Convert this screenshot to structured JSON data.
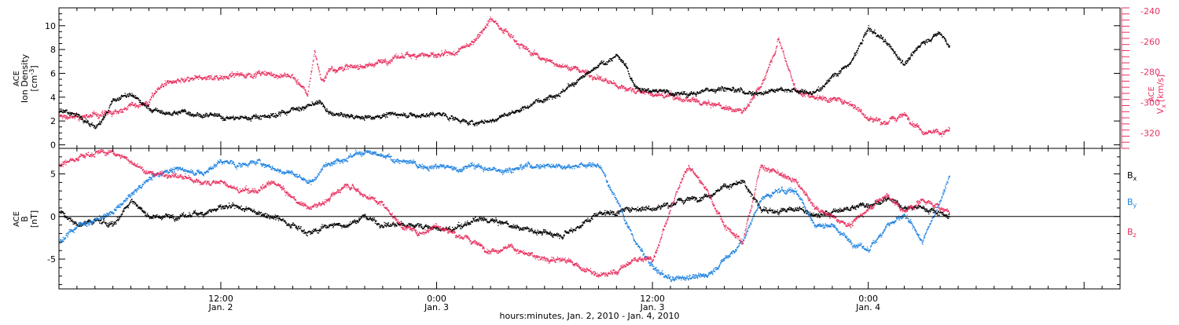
{
  "colors": {
    "density": "#000000",
    "vx": "#e8305f",
    "bx": "#000000",
    "by": "#1e82e0",
    "bz": "#e8305f",
    "axis": "#000000",
    "zero_line": "#000000"
  },
  "x_axis": {
    "title": "hours:minutes, Jan. 2, 2010 - Jan. 4, 2010",
    "major_ticks": [
      {
        "time": "12:00",
        "date": "Jan. 2",
        "hours": 12
      },
      {
        "time": "0:00",
        "date": "Jan. 3",
        "hours": 24
      },
      {
        "time": "12:00",
        "date": "Jan. 3",
        "hours": 36
      },
      {
        "time": "0:00",
        "date": "Jan. 4",
        "hours": 48
      }
    ],
    "range_hours": [
      3,
      62
    ],
    "data_end_hours": 52.5,
    "minor_tick_step_hours": 1,
    "major_tick_step_hours": 12
  },
  "chart_data": [
    {
      "type": "scatter",
      "panel": "plasma",
      "ylabel_left": [
        "ACE",
        "Ion Density",
        "[cm",
        "-3",
        "]"
      ],
      "ylabel_right": [
        "ACE",
        "V",
        "x",
        "[km/s]"
      ],
      "ylim_left": [
        -0.3,
        11.5
      ],
      "ylim_right": [
        -330,
        -238
      ],
      "yticks_left": [
        "0",
        "2",
        "4",
        "6",
        "8",
        "10"
      ],
      "yticks_right": [
        "-320",
        "-300",
        "-280",
        "-260",
        "-240"
      ],
      "series": [
        {
          "axis": "left",
          "color": "#000000",
          "points": [
            [
              3,
              2.8
            ],
            [
              4,
              2.5
            ],
            [
              5,
              1.5
            ],
            [
              5.5,
              2.2
            ],
            [
              6,
              3.8
            ],
            [
              7,
              4.2
            ],
            [
              8,
              3.0
            ],
            [
              9,
              2.6
            ],
            [
              10,
              2.8
            ],
            [
              11,
              2.5
            ],
            [
              12,
              2.3
            ],
            [
              13,
              2.2
            ],
            [
              14,
              2.4
            ],
            [
              15,
              2.5
            ],
            [
              16,
              3.0
            ],
            [
              16.8,
              3.2
            ],
            [
              17.5,
              3.6
            ],
            [
              18,
              2.6
            ],
            [
              19,
              2.4
            ],
            [
              20,
              2.3
            ],
            [
              21,
              2.5
            ],
            [
              22,
              2.6
            ],
            [
              23,
              2.4
            ],
            [
              24,
              2.6
            ],
            [
              25,
              2.2
            ],
            [
              26,
              1.8
            ],
            [
              27,
              2.0
            ],
            [
              28,
              2.6
            ],
            [
              29,
              3.2
            ],
            [
              30,
              4.0
            ],
            [
              31,
              4.5
            ],
            [
              32,
              5.5
            ],
            [
              33,
              6.6
            ],
            [
              34,
              7.5
            ],
            [
              34.5,
              6.5
            ],
            [
              35,
              5.0
            ],
            [
              36,
              4.5
            ],
            [
              37,
              4.4
            ],
            [
              38,
              4.2
            ],
            [
              39,
              4.6
            ],
            [
              40,
              4.8
            ],
            [
              41,
              4.5
            ],
            [
              42,
              4.3
            ],
            [
              43,
              4.8
            ],
            [
              44,
              4.5
            ],
            [
              45,
              4.3
            ],
            [
              46,
              5.8
            ],
            [
              47,
              6.8
            ],
            [
              48,
              9.8
            ],
            [
              49,
              8.5
            ],
            [
              50,
              6.8
            ],
            [
              51,
              8.6
            ],
            [
              52,
              9.4
            ],
            [
              52.5,
              8.3
            ]
          ]
        },
        {
          "axis": "right",
          "color": "#e8305f",
          "points": [
            [
              3,
              -309
            ],
            [
              4,
              -310
            ],
            [
              5,
              -308
            ],
            [
              6,
              -307
            ],
            [
              7,
              -302
            ],
            [
              8,
              -300
            ],
            [
              8.5,
              -290
            ],
            [
              9,
              -287
            ],
            [
              10,
              -286
            ],
            [
              11,
              -284
            ],
            [
              12,
              -283
            ],
            [
              13,
              -282
            ],
            [
              14,
              -281
            ],
            [
              15,
              -282
            ],
            [
              16,
              -283
            ],
            [
              16.8,
              -295
            ],
            [
              17.2,
              -266
            ],
            [
              17.6,
              -287
            ],
            [
              18,
              -278
            ],
            [
              19,
              -277
            ],
            [
              20,
              -276
            ],
            [
              21,
              -273
            ],
            [
              22,
              -270
            ],
            [
              23,
              -268
            ],
            [
              24,
              -270
            ],
            [
              25,
              -268
            ],
            [
              26,
              -260
            ],
            [
              27,
              -245
            ],
            [
              28,
              -255
            ],
            [
              29,
              -266
            ],
            [
              30,
              -272
            ],
            [
              31,
              -276
            ],
            [
              32,
              -279
            ],
            [
              33,
              -284
            ],
            [
              34,
              -289
            ],
            [
              35,
              -292
            ],
            [
              36,
              -295
            ],
            [
              37,
              -296
            ],
            [
              38,
              -299
            ],
            [
              39,
              -301
            ],
            [
              40,
              -303
            ],
            [
              41,
              -306
            ],
            [
              42,
              -290
            ],
            [
              43,
              -258
            ],
            [
              44,
              -293
            ],
            [
              45,
              -296
            ],
            [
              46,
              -298
            ],
            [
              47,
              -300
            ],
            [
              48,
              -310
            ],
            [
              49,
              -313
            ],
            [
              50,
              -308
            ],
            [
              51,
              -318
            ],
            [
              52,
              -320
            ],
            [
              52.5,
              -318
            ]
          ]
        }
      ]
    },
    {
      "type": "scatter",
      "panel": "magnetic field",
      "ylabel_left": [
        "ACE",
        "B",
        "[nT]"
      ],
      "ylim": [
        -8.5,
        8
      ],
      "yticks": [
        "-5",
        "0",
        "5"
      ],
      "legend": [
        {
          "label": "B",
          "sub": "x",
          "color": "#000000"
        },
        {
          "label": "B",
          "sub": "y",
          "color": "#1e82e0"
        },
        {
          "label": "B",
          "sub": "z",
          "color": "#e8305f"
        }
      ],
      "legend_placement": "right",
      "series": [
        {
          "name": "Bx",
          "color": "#000000",
          "points": [
            [
              3,
              0.5
            ],
            [
              4,
              -1
            ],
            [
              5,
              -0.5
            ],
            [
              6,
              -1
            ],
            [
              7,
              2
            ],
            [
              8,
              0
            ],
            [
              9,
              0
            ],
            [
              10,
              0
            ],
            [
              11,
              0.5
            ],
            [
              12,
              1
            ],
            [
              13,
              1
            ],
            [
              14,
              0.5
            ],
            [
              15,
              0
            ],
            [
              16,
              -1
            ],
            [
              17,
              -2
            ],
            [
              18,
              -1
            ],
            [
              19,
              -1
            ],
            [
              20,
              0
            ],
            [
              21,
              -1
            ],
            [
              22,
              -1
            ],
            [
              23,
              -1
            ],
            [
              24,
              -1.5
            ],
            [
              25,
              -1.5
            ],
            [
              26,
              -0.5
            ],
            [
              27,
              -0.5
            ],
            [
              28,
              -1
            ],
            [
              29,
              -1.5
            ],
            [
              30,
              -2
            ],
            [
              31,
              -2
            ],
            [
              32,
              -1
            ],
            [
              33,
              0.5
            ],
            [
              34,
              0.5
            ],
            [
              35,
              1
            ],
            [
              36,
              1
            ],
            [
              37,
              1.5
            ],
            [
              38,
              2
            ],
            [
              39,
              2.5
            ],
            [
              40,
              3.5
            ],
            [
              41,
              4
            ],
            [
              42,
              1
            ],
            [
              43,
              0.5
            ],
            [
              44,
              1
            ],
            [
              45,
              0
            ],
            [
              46,
              0.5
            ],
            [
              47,
              1
            ],
            [
              48,
              1.5
            ],
            [
              49,
              2
            ],
            [
              50,
              1
            ],
            [
              51,
              1
            ],
            [
              52,
              0.5
            ],
            [
              52.5,
              0
            ]
          ]
        },
        {
          "name": "By",
          "color": "#1e82e0",
          "points": [
            [
              3,
              -3
            ],
            [
              4,
              -1
            ],
            [
              5,
              -0.5
            ],
            [
              6,
              0.5
            ],
            [
              7,
              2.5
            ],
            [
              8,
              4.5
            ],
            [
              9,
              5.5
            ],
            [
              10,
              5.5
            ],
            [
              11,
              5
            ],
            [
              12,
              6.5
            ],
            [
              13,
              6
            ],
            [
              14,
              6.5
            ],
            [
              15,
              5.5
            ],
            [
              16,
              5
            ],
            [
              17,
              4
            ],
            [
              18,
              6.5
            ],
            [
              19,
              7
            ],
            [
              20,
              7.5
            ],
            [
              21,
              7
            ],
            [
              22,
              6.5
            ],
            [
              23,
              6
            ],
            [
              24,
              6
            ],
            [
              25,
              5.5
            ],
            [
              26,
              6
            ],
            [
              27,
              5.5
            ],
            [
              28,
              5.5
            ],
            [
              29,
              6
            ],
            [
              30,
              6
            ],
            [
              31,
              6
            ],
            [
              32,
              6
            ],
            [
              33,
              6
            ],
            [
              34,
              2
            ],
            [
              35,
              -3
            ],
            [
              36,
              -6
            ],
            [
              37,
              -7.5
            ],
            [
              38,
              -7
            ],
            [
              39,
              -7
            ],
            [
              40,
              -5
            ],
            [
              41,
              -3
            ],
            [
              42,
              2
            ],
            [
              43,
              3
            ],
            [
              44,
              3
            ],
            [
              45,
              -1
            ],
            [
              46,
              -1
            ],
            [
              47,
              -3
            ],
            [
              48,
              -4
            ],
            [
              49,
              -1
            ],
            [
              50,
              0
            ],
            [
              51,
              -3
            ],
            [
              52,
              2
            ],
            [
              52.5,
              5
            ]
          ]
        },
        {
          "name": "Bz",
          "color": "#e8305f",
          "points": [
            [
              3,
              6
            ],
            [
              4,
              7
            ],
            [
              5,
              7.5
            ],
            [
              6,
              7.5
            ],
            [
              7,
              6.5
            ],
            [
              8,
              5
            ],
            [
              9,
              5
            ],
            [
              10,
              4.5
            ],
            [
              11,
              4
            ],
            [
              12,
              4
            ],
            [
              13,
              3
            ],
            [
              14,
              3
            ],
            [
              15,
              4
            ],
            [
              16,
              2
            ],
            [
              17,
              1
            ],
            [
              18,
              2
            ],
            [
              19,
              4
            ],
            [
              20,
              2.5
            ],
            [
              21,
              1.5
            ],
            [
              22,
              -1
            ],
            [
              23,
              -2
            ],
            [
              24,
              -1
            ],
            [
              25,
              -2
            ],
            [
              26,
              -3
            ],
            [
              27,
              -4
            ],
            [
              28,
              -3.5
            ],
            [
              29,
              -4.5
            ],
            [
              30,
              -5
            ],
            [
              31,
              -5
            ],
            [
              32,
              -6
            ],
            [
              33,
              -7
            ],
            [
              34,
              -6.5
            ],
            [
              35,
              -5
            ],
            [
              36,
              -5
            ],
            [
              37,
              1
            ],
            [
              38,
              6
            ],
            [
              39,
              3
            ],
            [
              40,
              -1
            ],
            [
              41,
              -3
            ],
            [
              42,
              6
            ],
            [
              43,
              5
            ],
            [
              44,
              4
            ],
            [
              45,
              1
            ],
            [
              46,
              0
            ],
            [
              47,
              -1
            ],
            [
              48,
              1
            ],
            [
              49,
              2.5
            ],
            [
              50,
              0.5
            ],
            [
              51,
              2
            ],
            [
              52,
              1
            ],
            [
              52.5,
              0.5
            ]
          ]
        }
      ]
    }
  ]
}
